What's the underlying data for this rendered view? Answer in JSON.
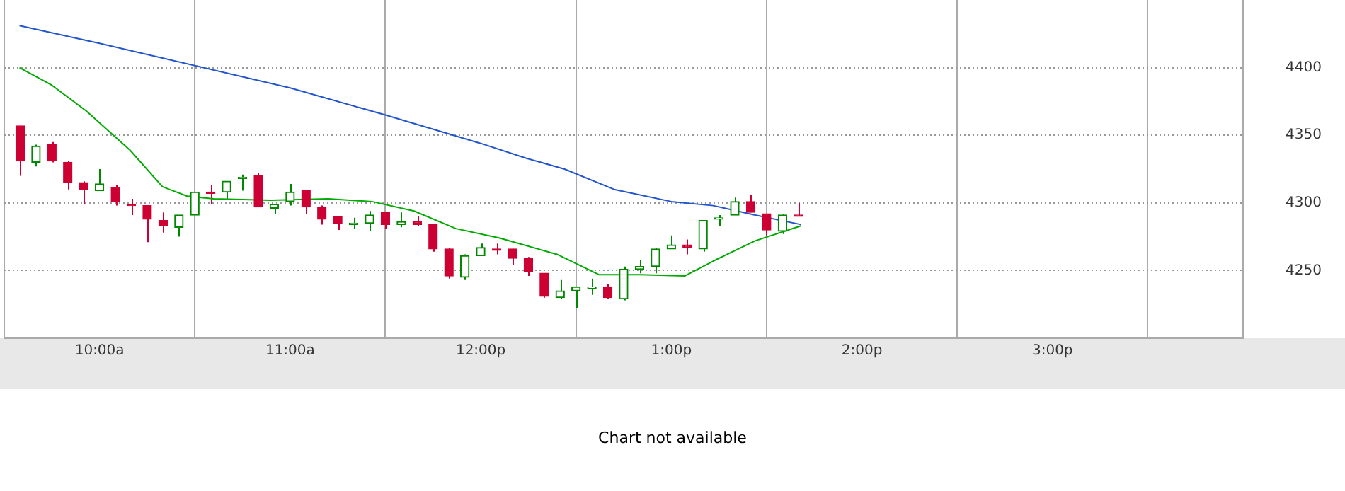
{
  "chart_data": {
    "type": "candlestick",
    "x": [
      9.5833,
      9.6667,
      9.75,
      9.8333,
      9.9167,
      10,
      10.0833,
      10.1667,
      10.25,
      10.3333,
      10.4167,
      10.5,
      10.5833,
      10.6667,
      10.75,
      10.8333,
      10.9167,
      11,
      11.0833,
      11.1667,
      11.25,
      11.3333,
      11.4167,
      11.5,
      11.5833,
      11.6667,
      11.75,
      11.8333,
      11.9167,
      12,
      12.0833,
      12.1667,
      12.25,
      12.3333,
      12.4167,
      12.5,
      12.5833,
      12.6667,
      12.75,
      12.8333,
      12.9167,
      13,
      13.0833,
      13.1667,
      13.25,
      13.3333,
      13.4167,
      13.5,
      13.5833,
      13.6667
    ],
    "ohlc": [
      [
        4357,
        4357,
        4320,
        4331
      ],
      [
        4330,
        4343,
        4327,
        4342
      ],
      [
        4343,
        4345,
        4330,
        4331
      ],
      [
        4330,
        4331,
        4310,
        4315
      ],
      [
        4315,
        4316,
        4299,
        4310
      ],
      [
        4309,
        4325,
        4309,
        4314
      ],
      [
        4311,
        4313,
        4298,
        4301
      ],
      [
        4299,
        4303,
        4291,
        4298
      ],
      [
        4298,
        4298,
        4271,
        4288
      ],
      [
        4287,
        4293,
        4278,
        4283
      ],
      [
        4282,
        4291,
        4275,
        4291
      ],
      [
        4291,
        4308,
        4291,
        4308
      ],
      [
        4308,
        4313,
        4299,
        4307
      ],
      [
        4308,
        4316,
        4303,
        4316
      ],
      [
        4318,
        4321,
        4309,
        4319
      ],
      [
        4320,
        4322,
        4297,
        4297
      ],
      [
        4296,
        4299,
        4292,
        4299
      ],
      [
        4301,
        4314,
        4298,
        4308
      ],
      [
        4309,
        4309,
        4292,
        4297
      ],
      [
        4297,
        4298,
        4284,
        4288
      ],
      [
        4290,
        4290,
        4280,
        4285
      ],
      [
        4284,
        4289,
        4281,
        4285
      ],
      [
        4285,
        4294,
        4279,
        4291
      ],
      [
        4293,
        4293,
        4281,
        4284
      ],
      [
        4284,
        4293,
        4282,
        4286
      ],
      [
        4286,
        4290,
        4283,
        4284
      ],
      [
        4284,
        4284,
        4264,
        4266
      ],
      [
        4266,
        4267,
        4244,
        4246
      ],
      [
        4245,
        4262,
        4243,
        4261
      ],
      [
        4261,
        4270,
        4261,
        4267
      ],
      [
        4266,
        4270,
        4262,
        4265
      ],
      [
        4266,
        4266,
        4254,
        4259
      ],
      [
        4259,
        4260,
        4246,
        4249
      ],
      [
        4248,
        4248,
        4230,
        4231
      ],
      [
        4230,
        4243,
        4229,
        4235
      ],
      [
        4235,
        4238,
        4222,
        4238
      ],
      [
        4237,
        4244,
        4232,
        4238
      ],
      [
        4238,
        4240,
        4229,
        4230
      ],
      [
        4229,
        4253,
        4228,
        4251
      ],
      [
        4251,
        4258,
        4248,
        4253
      ],
      [
        4253,
        4267,
        4248,
        4266
      ],
      [
        4266,
        4276,
        4266,
        4269
      ],
      [
        4269,
        4273,
        4262,
        4267
      ],
      [
        4266,
        4287,
        4264,
        4287
      ],
      [
        4288,
        4291,
        4283,
        4289
      ],
      [
        4291,
        4304,
        4291,
        4301
      ],
      [
        4301,
        4306,
        4293,
        4293
      ],
      [
        4292,
        4292,
        4276,
        4280
      ],
      [
        4279,
        4292,
        4277,
        4291
      ],
      [
        4291,
        4300,
        4290,
        4290
      ]
    ],
    "colors": [
      "#cc0033",
      "#008800",
      "#cc0033",
      "#cc0033",
      "#cc0033",
      "#008800",
      "#cc0033",
      "#cc0033",
      "#cc0033",
      "#cc0033",
      "#008800",
      "#008800",
      "#cc0033",
      "#008800",
      "#008800",
      "#cc0033",
      "#008800",
      "#008800",
      "#cc0033",
      "#cc0033",
      "#cc0033",
      "#008800",
      "#008800",
      "#cc0033",
      "#008800",
      "#cc0033",
      "#cc0033",
      "#cc0033",
      "#008800",
      "#008800",
      "#cc0033",
      "#cc0033",
      "#cc0033",
      "#cc0033",
      "#008800",
      "#008800",
      "#008800",
      "#cc0033",
      "#008800",
      "#008800",
      "#008800",
      "#008800",
      "#cc0033",
      "#008800",
      "#008800",
      "#008800",
      "#cc0033",
      "#cc0033",
      "#008800",
      "#cc0033"
    ],
    "series": [
      {
        "type": "line",
        "color": "#2255cc",
        "x": [
          9.58,
          10,
          11,
          11.5,
          12,
          12.24,
          12.44,
          12.7,
          13,
          13.22,
          13.44,
          13.68
        ],
        "values": [
          4431,
          4418,
          4385,
          4365,
          4344,
          4333,
          4325,
          4310,
          4301,
          4298,
          4291,
          4284
        ]
      },
      {
        "type": "line",
        "color": "#00aa00",
        "x": [
          9.58,
          9.75,
          9.93,
          10.16,
          10.33,
          10.46,
          10.6,
          10.9,
          11.2,
          11.43,
          11.65,
          11.87,
          12.1,
          12.4,
          12.62,
          12.84,
          13.07,
          13.22,
          13.44,
          13.68
        ],
        "values": [
          4400,
          4387,
          4368,
          4339,
          4312,
          4305,
          4303,
          4302,
          4303,
          4301,
          4294,
          4281,
          4274,
          4262,
          4247,
          4247,
          4246,
          4257,
          4272,
          4283
        ]
      }
    ],
    "xlim": [
      9.5,
      16
    ],
    "xticks": [
      {
        "value": 10,
        "label": "10:00a"
      },
      {
        "value": 11,
        "label": "11:00a"
      },
      {
        "value": 12,
        "label": "12:00p"
      },
      {
        "value": 13,
        "label": "1:00p"
      },
      {
        "value": 14,
        "label": "2:00p"
      },
      {
        "value": 15,
        "label": "3:00p"
      }
    ],
    "ylim": [
      4200,
      4450
    ],
    "yticks": [
      4250,
      4300,
      4350,
      4400
    ],
    "grid": true,
    "marker": "none",
    "line_style": "solid",
    "annotations": [
      "Chart not available"
    ]
  }
}
